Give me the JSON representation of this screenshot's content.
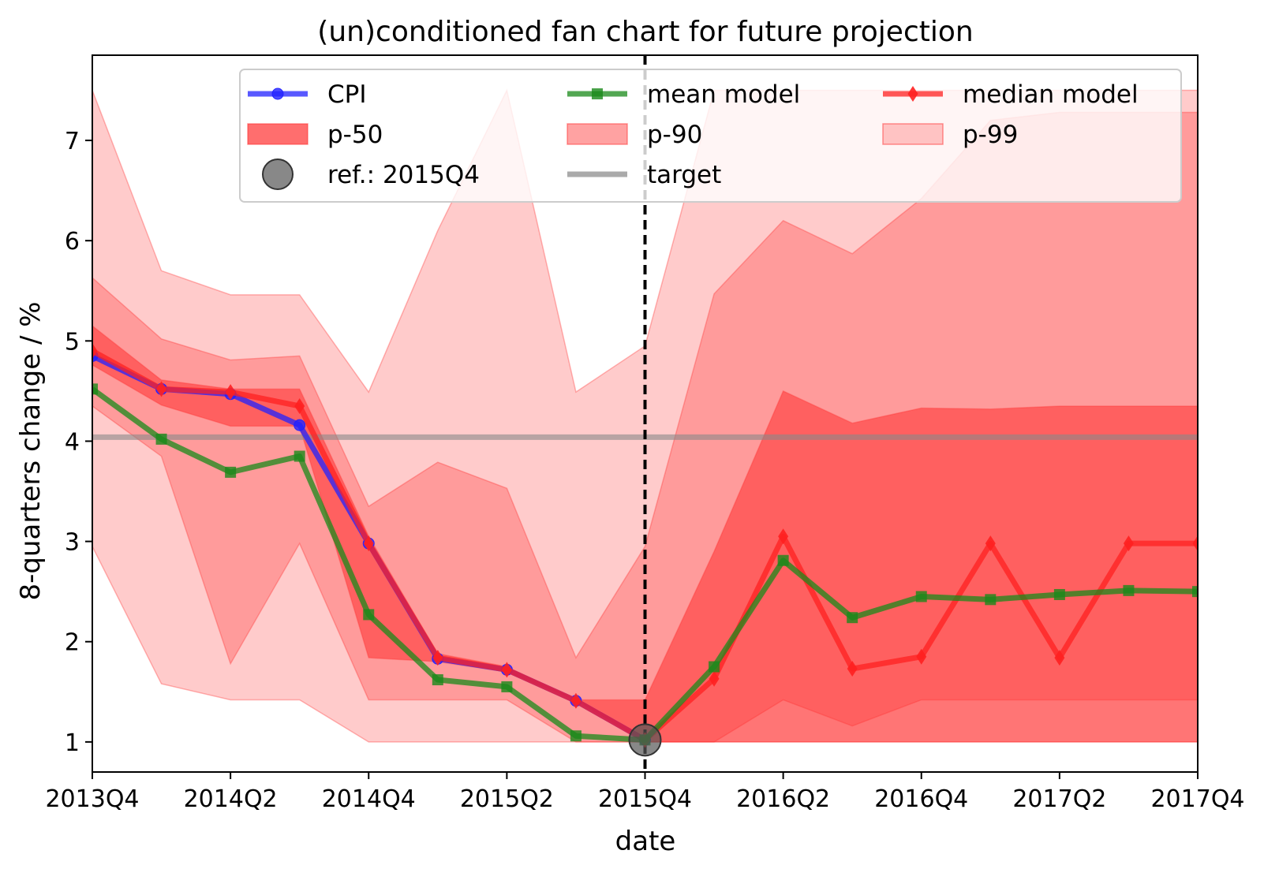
{
  "chart_data": {
    "type": "line",
    "title": "(un)conditioned fan chart for future projection",
    "xlabel": "date",
    "ylabel": "8-quarters change / %",
    "x": [
      "2013Q4",
      "2014Q1",
      "2014Q2",
      "2014Q3",
      "2014Q4",
      "2015Q1",
      "2015Q2",
      "2015Q3",
      "2015Q4",
      "2016Q1",
      "2016Q2",
      "2016Q3",
      "2016Q4",
      "2017Q1",
      "2017Q2",
      "2017Q3",
      "2017Q4"
    ],
    "xticks": [
      "2013Q4",
      "2014Q2",
      "2014Q4",
      "2015Q2",
      "2015Q4",
      "2016Q2",
      "2016Q4",
      "2017Q2",
      "2017Q4"
    ],
    "yticks": [
      "1",
      "2",
      "3",
      "4",
      "5",
      "6",
      "7"
    ],
    "ylim": [
      0.7,
      7.85
    ],
    "grid": false,
    "legend_position": "top",
    "series": [
      {
        "name": "CPI",
        "color": "#2222ff",
        "marker": "circle",
        "values": [
          4.85,
          4.52,
          4.47,
          4.16,
          2.98,
          1.83,
          1.72,
          1.41,
          1.02,
          null,
          null,
          null,
          null,
          null,
          null,
          null,
          null
        ]
      },
      {
        "name": "mean model",
        "color": "#1a8a1a",
        "marker": "square",
        "values": [
          4.52,
          4.02,
          3.69,
          3.85,
          2.27,
          1.62,
          1.55,
          1.06,
          1.02,
          1.75,
          2.81,
          2.24,
          2.45,
          2.42,
          2.47,
          2.51,
          2.5
        ]
      },
      {
        "name": "median model",
        "color": "#ff2020",
        "marker": "diamond",
        "values": [
          4.9,
          4.52,
          4.49,
          4.35,
          2.98,
          1.84,
          1.72,
          1.41,
          1.02,
          1.63,
          3.05,
          1.73,
          1.85,
          2.98,
          1.84,
          2.98,
          2.98
        ]
      }
    ],
    "bands": [
      {
        "name": "p-99",
        "color": "#ff3030",
        "opacity": 0.25,
        "lower": [
          2.95,
          1.58,
          1.42,
          1.42,
          1.0,
          1.0,
          1.0,
          1.0,
          1.0,
          1.0,
          1.0,
          1.0,
          1.0,
          1.0,
          1.0,
          1.0,
          1.0
        ],
        "upper": [
          7.5,
          5.7,
          5.46,
          5.46,
          4.49,
          6.1,
          7.5,
          4.49,
          4.95,
          7.5,
          7.5,
          7.5,
          7.5,
          7.5,
          7.5,
          7.5,
          7.5
        ]
      },
      {
        "name": "p-90",
        "color": "#ff3030",
        "opacity": 0.3,
        "lower": [
          4.35,
          3.85,
          1.78,
          2.98,
          1.42,
          1.42,
          1.42,
          1.0,
          1.0,
          1.0,
          1.42,
          1.16,
          1.42,
          1.42,
          1.42,
          1.42,
          1.42
        ],
        "upper": [
          5.63,
          5.02,
          4.81,
          4.85,
          3.35,
          3.79,
          3.53,
          1.84,
          2.95,
          5.47,
          6.2,
          5.87,
          6.42,
          7.2,
          7.28,
          7.28,
          7.28
        ]
      },
      {
        "name": "p-50",
        "color": "#ff3030",
        "opacity": 0.55,
        "lower": [
          4.76,
          4.36,
          4.15,
          4.15,
          1.84,
          1.8,
          1.7,
          1.42,
          1.0,
          1.0,
          1.0,
          1.0,
          1.0,
          1.0,
          1.0,
          1.0,
          1.0
        ],
        "upper": [
          5.15,
          4.61,
          4.52,
          4.52,
          3.05,
          1.88,
          1.75,
          1.42,
          1.42,
          2.9,
          4.5,
          4.18,
          4.33,
          4.32,
          4.35,
          4.35,
          4.35
        ]
      }
    ],
    "target": {
      "name": "target",
      "value": 4.04,
      "color": "#888888"
    },
    "reference": {
      "name": "ref.: 2015Q4",
      "x": "2015Q4",
      "value": 1.02,
      "color": "#555555"
    },
    "legend": [
      {
        "label": "CPI",
        "kind": "line",
        "color": "#2222ff",
        "marker": "circle"
      },
      {
        "label": "p-50",
        "kind": "patch",
        "color": "#ff3030",
        "opacity": 0.7
      },
      {
        "label": "ref.: 2015Q4",
        "kind": "dot",
        "color": "#555555"
      },
      {
        "label": "mean model",
        "kind": "line",
        "color": "#1a8a1a",
        "marker": "square"
      },
      {
        "label": "p-90",
        "kind": "patch",
        "color": "#ff3030",
        "opacity": 0.45
      },
      {
        "label": "target",
        "kind": "hline",
        "color": "#aaaaaa"
      },
      {
        "label": "median model",
        "kind": "line",
        "color": "#ff2020",
        "marker": "diamond"
      },
      {
        "label": "p-99",
        "kind": "patch",
        "color": "#ff3030",
        "opacity": 0.25
      }
    ]
  }
}
